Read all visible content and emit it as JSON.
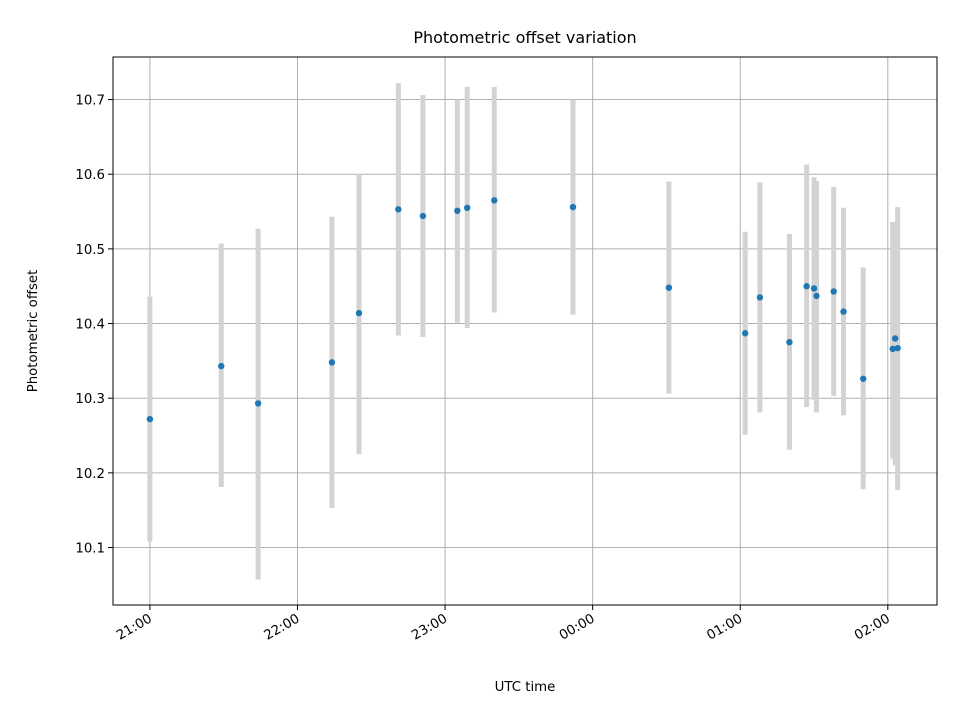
{
  "chart_data": {
    "type": "scatter",
    "title": "Photometric offset variation",
    "xlabel": "UTC time",
    "ylabel": "Photometric offset",
    "x_tick_labels": [
      "21:00",
      "22:00",
      "23:00",
      "00:00",
      "01:00",
      "02:00"
    ],
    "y_tick_labels": [
      "10.1",
      "10.2",
      "10.3",
      "10.4",
      "10.5",
      "10.6",
      "10.7"
    ],
    "y_ticks": [
      10.1,
      10.2,
      10.3,
      10.4,
      10.5,
      10.6,
      10.7
    ],
    "ylim": [
      10.023,
      10.757
    ],
    "xlim": [
      "20:45",
      "02:20"
    ],
    "grid": true,
    "colors": {
      "points": "#1f77b4",
      "error_bars": "#d3d3d3",
      "grid": "#b0b0b0"
    },
    "series": [
      {
        "points": [
          {
            "x": "21:00",
            "y": 10.272,
            "ylo": 10.108,
            "yhi": 10.436
          },
          {
            "x": "21:29",
            "y": 10.343,
            "ylo": 10.181,
            "yhi": 10.507
          },
          {
            "x": "21:44",
            "y": 10.293,
            "ylo": 10.057,
            "yhi": 10.527
          },
          {
            "x": "22:14",
            "y": 10.348,
            "ylo": 10.153,
            "yhi": 10.543
          },
          {
            "x": "22:25",
            "y": 10.414,
            "ylo": 10.225,
            "yhi": 10.601
          },
          {
            "x": "22:41",
            "y": 10.553,
            "ylo": 10.384,
            "yhi": 10.722
          },
          {
            "x": "22:51",
            "y": 10.544,
            "ylo": 10.382,
            "yhi": 10.706
          },
          {
            "x": "23:05",
            "y": 10.551,
            "ylo": 10.401,
            "yhi": 10.7
          },
          {
            "x": "23:09",
            "y": 10.555,
            "ylo": 10.394,
            "yhi": 10.717
          },
          {
            "x": "23:20",
            "y": 10.565,
            "ylo": 10.415,
            "yhi": 10.717
          },
          {
            "x": "23:52",
            "y": 10.556,
            "ylo": 10.412,
            "yhi": 10.7
          },
          {
            "x": "00:31",
            "y": 10.448,
            "ylo": 10.306,
            "yhi": 10.59
          },
          {
            "x": "01:02",
            "y": 10.387,
            "ylo": 10.251,
            "yhi": 10.523
          },
          {
            "x": "01:08",
            "y": 10.435,
            "ylo": 10.281,
            "yhi": 10.589
          },
          {
            "x": "01:20",
            "y": 10.375,
            "ylo": 10.231,
            "yhi": 10.52
          },
          {
            "x": "01:27",
            "y": 10.45,
            "ylo": 10.288,
            "yhi": 10.613
          },
          {
            "x": "01:30",
            "y": 10.447,
            "ylo": 10.298,
            "yhi": 10.596
          },
          {
            "x": "01:31",
            "y": 10.437,
            "ylo": 10.281,
            "yhi": 10.591
          },
          {
            "x": "01:38",
            "y": 10.443,
            "ylo": 10.303,
            "yhi": 10.583
          },
          {
            "x": "01:42",
            "y": 10.416,
            "ylo": 10.277,
            "yhi": 10.555
          },
          {
            "x": "01:50",
            "y": 10.326,
            "ylo": 10.178,
            "yhi": 10.475
          },
          {
            "x": "02:02",
            "y": 10.366,
            "ylo": 10.219,
            "yhi": 10.536
          },
          {
            "x": "02:03",
            "y": 10.38,
            "ylo": 10.21,
            "yhi": 10.52
          },
          {
            "x": "02:04",
            "y": 10.367,
            "ylo": 10.177,
            "yhi": 10.556
          }
        ]
      }
    ]
  }
}
